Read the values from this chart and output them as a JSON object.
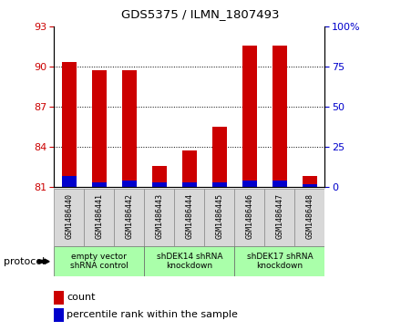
{
  "title": "GDS5375 / ILMN_1807493",
  "samples": [
    "GSM1486440",
    "GSM1486441",
    "GSM1486442",
    "GSM1486443",
    "GSM1486444",
    "GSM1486445",
    "GSM1486446",
    "GSM1486447",
    "GSM1486448"
  ],
  "count_values": [
    90.35,
    89.7,
    89.7,
    82.6,
    83.7,
    85.5,
    91.6,
    91.6,
    81.8
  ],
  "percentile_values": [
    7,
    3,
    4,
    3,
    3,
    3,
    4,
    4,
    2
  ],
  "ylim_left": [
    81,
    93
  ],
  "yticks_left": [
    81,
    84,
    87,
    90,
    93
  ],
  "ylim_right": [
    0,
    100
  ],
  "yticks_right": [
    0,
    25,
    50,
    75,
    100
  ],
  "count_color": "#cc0000",
  "percentile_color": "#0000cc",
  "groups": [
    {
      "label": "empty vector\nshRNA control",
      "start": 0,
      "end": 3,
      "color": "#aaffaa"
    },
    {
      "label": "shDEK14 shRNA\nknockdown",
      "start": 3,
      "end": 6,
      "color": "#aaffaa"
    },
    {
      "label": "shDEK17 shRNA\nknockdown",
      "start": 6,
      "end": 9,
      "color": "#aaffaa"
    }
  ],
  "protocol_label": "protocol",
  "legend_count_label": "count",
  "legend_percentile_label": "percentile rank within the sample",
  "sample_bg_color": "#d8d8d8",
  "plot_bg_color": "#ffffff",
  "bar_width": 0.5
}
